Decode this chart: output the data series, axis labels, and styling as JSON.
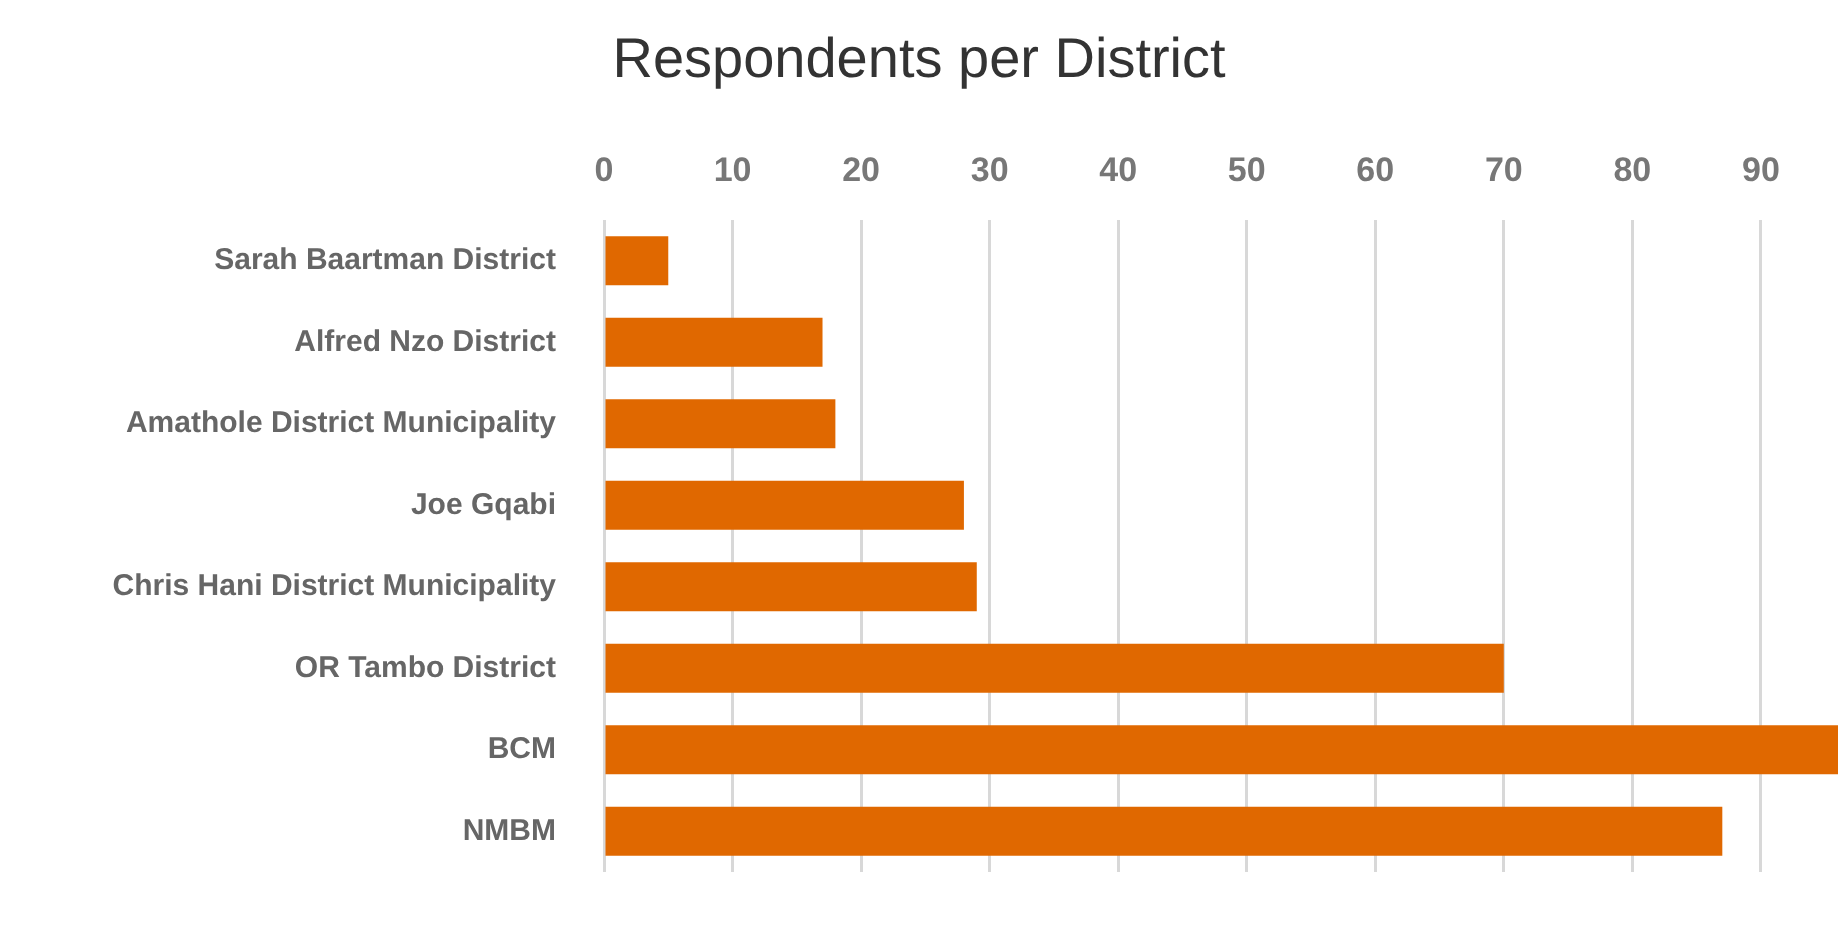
{
  "chart_data": {
    "type": "bar",
    "orientation": "horizontal",
    "title": "Respondents per District",
    "categories": [
      "Sarah Baartman District",
      "Alfred Nzo District",
      "Amathole District Municipality",
      "Joe Gqabi",
      "Chris Hani District Municipality",
      "OR Tambo District",
      "BCM",
      "NMBM"
    ],
    "values": [
      5,
      17,
      18,
      28,
      29,
      70,
      96,
      87
    ],
    "color": "#e06800",
    "xlim": [
      0,
      96
    ],
    "xticks": [
      0,
      10,
      20,
      30,
      40,
      50,
      60,
      70,
      80,
      90
    ],
    "grid": "x"
  }
}
